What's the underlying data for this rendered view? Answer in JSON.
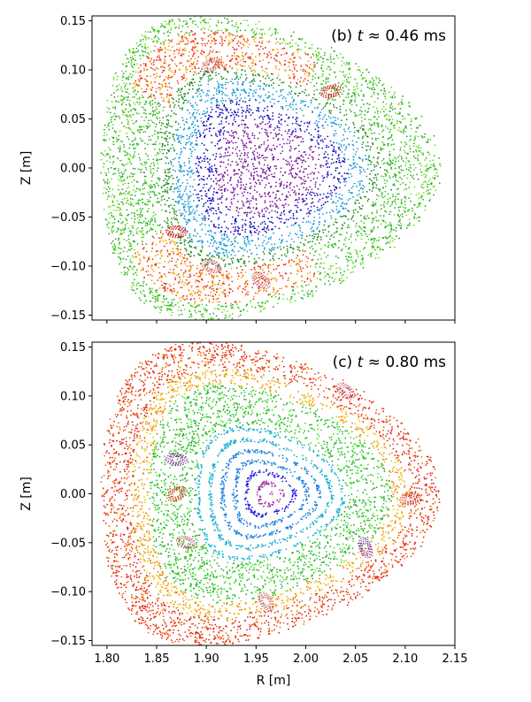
{
  "chart_data": [
    {
      "type": "scatter",
      "panel": "top",
      "annotation": "(b) t ≈ 0.46 ms",
      "annotation_parts": {
        "prefix": "(b) ",
        "var": "t",
        "rest": " ≈ 0.46 ms"
      },
      "xlabel": "",
      "ylabel": "Z [m]",
      "xlim": [
        1.785,
        2.15
      ],
      "ylim": [
        -0.155,
        0.155
      ],
      "xticks": [
        1.8,
        1.85,
        1.9,
        1.95,
        2.0,
        2.05,
        2.1,
        2.15
      ],
      "xtick_labels": [],
      "yticks": [
        -0.15,
        -0.1,
        -0.05,
        0.0,
        0.05,
        0.1,
        0.15
      ],
      "ytick_labels": [
        "−0.15",
        "−0.10",
        "−0.05",
        "0.00",
        "0.05",
        "0.10",
        "0.15"
      ],
      "boundary": {
        "outer_point": [
          2.14,
          0.0
        ],
        "top_right": [
          2.09,
          0.08
        ],
        "top_point": [
          1.93,
          0.15
        ],
        "top_left": [
          1.83,
          0.11
        ],
        "left": [
          1.79,
          0.0
        ],
        "bottom_left": [
          1.83,
          -0.11
        ],
        "bottom_point": [
          1.93,
          -0.15
        ],
        "bottom_right": [
          2.09,
          -0.08
        ]
      },
      "regions": [
        {
          "name": "core island chain",
          "color": "#7a1a9a",
          "center": [
            1.98,
            0.0
          ]
        },
        {
          "name": "inner surfaces",
          "color": "#1a10c0",
          "center": [
            1.98,
            0.0
          ]
        },
        {
          "name": "mid surfaces",
          "color": "#1a9ad6",
          "center": [
            1.98,
            0.0
          ]
        },
        {
          "name": "edge stochastic",
          "color": "#22bb22",
          "center": [
            1.97,
            0.0
          ]
        },
        {
          "name": "upper lobe",
          "color": "#e8301a",
          "center": [
            1.93,
            0.09
          ]
        },
        {
          "name": "lower lobe",
          "color": "#e8301a",
          "center": [
            1.93,
            -0.1
          ]
        }
      ],
      "islands": [
        {
          "center": [
            1.905,
            0.105
          ],
          "color": "#c06070"
        },
        {
          "center": [
            2.025,
            0.078
          ],
          "color": "#cc0000"
        },
        {
          "center": [
            1.87,
            -0.065
          ],
          "color": "#cc0000"
        },
        {
          "center": [
            1.905,
            -0.1
          ],
          "color": "#c06070"
        },
        {
          "center": [
            1.955,
            -0.115
          ],
          "color": "#c06070"
        }
      ]
    },
    {
      "type": "scatter",
      "panel": "bottom",
      "annotation": "(c) t ≈ 0.80 ms",
      "annotation_parts": {
        "prefix": "(c) ",
        "var": "t",
        "rest": " ≈ 0.80 ms"
      },
      "xlabel": "R [m]",
      "ylabel": "Z [m]",
      "xlim": [
        1.785,
        2.15
      ],
      "ylim": [
        -0.155,
        0.155
      ],
      "xticks": [
        1.8,
        1.85,
        1.9,
        1.95,
        2.0,
        2.05,
        2.1,
        2.15
      ],
      "xtick_labels": [
        "1.80",
        "1.85",
        "1.90",
        "1.95",
        "2.00",
        "2.05",
        "2.10",
        "2.15"
      ],
      "yticks": [
        -0.15,
        -0.1,
        -0.05,
        0.0,
        0.05,
        0.1,
        0.15
      ],
      "ytick_labels": [
        "−0.15",
        "−0.10",
        "−0.05",
        "0.00",
        "0.05",
        "0.10",
        "0.15"
      ],
      "boundary": {
        "outer_point": [
          2.14,
          0.0
        ],
        "top_right": [
          2.08,
          0.08
        ],
        "top_point": [
          1.92,
          0.145
        ],
        "top_left": [
          1.83,
          0.12
        ],
        "left": [
          1.795,
          0.0
        ],
        "bottom_left": [
          1.83,
          -0.12
        ],
        "bottom_point": [
          1.93,
          -0.15
        ],
        "bottom_right": [
          2.08,
          -0.08
        ]
      },
      "regions": [
        {
          "name": "axis",
          "color": "#4a0a9a",
          "center": [
            2.0,
            0.0
          ]
        },
        {
          "name": "inner surfaces",
          "color": "#1a10e0",
          "center": [
            2.0,
            0.0
          ]
        },
        {
          "name": "mid surfaces",
          "color": "#1aa0d8",
          "center": [
            2.0,
            0.0
          ]
        },
        {
          "name": "green stochastic",
          "color": "#33dd22",
          "center": [
            1.98,
            0.0
          ]
        },
        {
          "name": "edge stochastic",
          "color": "#e82010",
          "center": [
            1.96,
            0.0
          ]
        }
      ],
      "islands": [
        {
          "center": [
            1.87,
            0.0
          ],
          "color": "#cc2200"
        },
        {
          "center": [
            2.105,
            -0.005
          ],
          "color": "#cc2200"
        },
        {
          "center": [
            1.87,
            0.035
          ],
          "color": "#7a1a9a"
        },
        {
          "center": [
            1.88,
            -0.05
          ],
          "color": "#c06070"
        },
        {
          "center": [
            2.04,
            0.105
          ],
          "color": "#c06070"
        },
        {
          "center": [
            1.96,
            -0.11
          ],
          "color": "#c06070"
        },
        {
          "center": [
            2.06,
            -0.055
          ],
          "color": "#7a1a9a"
        }
      ]
    }
  ]
}
